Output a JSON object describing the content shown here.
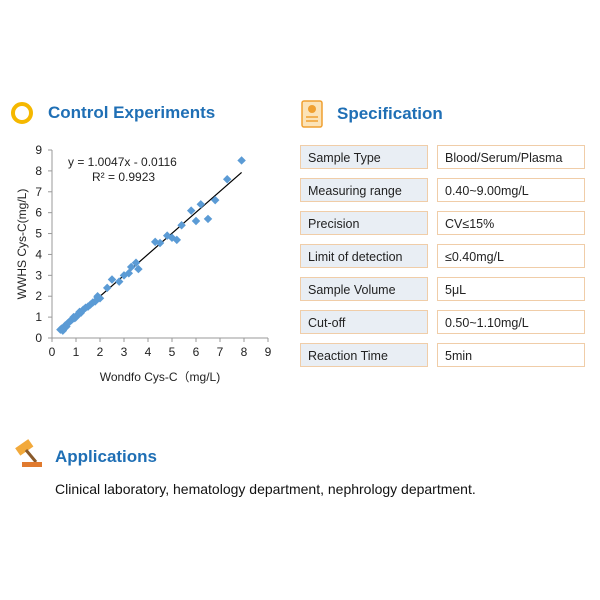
{
  "control": {
    "title": "Control Experiments"
  },
  "chart_data": {
    "type": "scatter",
    "x_label": "Wondfo Cys-C（mg/L)",
    "y_label": "WWHS Cys-C(mg/L)",
    "color": "#5b9bd5",
    "x": [
      0.35,
      0.4,
      0.5,
      0.55,
      0.6,
      0.65,
      0.7,
      0.75,
      0.8,
      0.85,
      0.9,
      1.0,
      1.05,
      1.1,
      1.2,
      1.3,
      1.4,
      1.5,
      1.6,
      1.7,
      1.8,
      1.9,
      2.0,
      2.3,
      2.5,
      2.8,
      3.0,
      3.2,
      3.3,
      3.5,
      3.6,
      4.3,
      4.5,
      4.8,
      5.0,
      5.2,
      5.4,
      5.8,
      6.0,
      6.2,
      6.5,
      6.8,
      7.3,
      7.9,
      0.45,
      0.95,
      1.15,
      1.9
    ],
    "values": [
      0.4,
      0.45,
      0.5,
      0.6,
      0.55,
      0.7,
      0.75,
      0.8,
      0.85,
      0.9,
      1.0,
      1.0,
      1.1,
      1.15,
      1.2,
      1.35,
      1.45,
      1.5,
      1.6,
      1.7,
      1.75,
      1.95,
      1.9,
      2.4,
      2.8,
      2.7,
      3.0,
      3.1,
      3.4,
      3.6,
      3.3,
      4.6,
      4.55,
      4.9,
      4.8,
      4.7,
      5.4,
      6.1,
      5.6,
      6.4,
      5.7,
      6.6,
      7.6,
      8.5,
      0.35,
      0.95,
      1.25,
      2.0
    ],
    "xlim": [
      0,
      9
    ],
    "ylim": [
      0,
      9
    ],
    "xticks": [
      0,
      1,
      2,
      3,
      4,
      5,
      6,
      7,
      8,
      9
    ],
    "yticks": [
      0,
      1,
      2,
      3,
      4,
      5,
      6,
      7,
      8,
      9
    ],
    "trendline": {
      "equation": "y = 1.0047x - 0.0116",
      "slope": 1.0047,
      "intercept": -0.0116,
      "r2": "R² = 0.9923",
      "color": "#000000"
    }
  },
  "specification": {
    "title": "Specification",
    "rows": [
      [
        "Sample  Type",
        "Blood/Serum/Plasma"
      ],
      [
        "Measuring range",
        "0.40~9.00mg/L"
      ],
      [
        "Precision",
        "CV≤15%"
      ],
      [
        "Limit of detection",
        "≤0.40mg/L"
      ],
      [
        "Sample  Volume",
        "5μL"
      ],
      [
        "Cut-off",
        "0.50~1.10mg/L"
      ],
      [
        "Reaction Time",
        "5min"
      ]
    ]
  },
  "applications": {
    "title": "Applications",
    "text": "Clinical laboratory, hematology department, nephrology department."
  }
}
